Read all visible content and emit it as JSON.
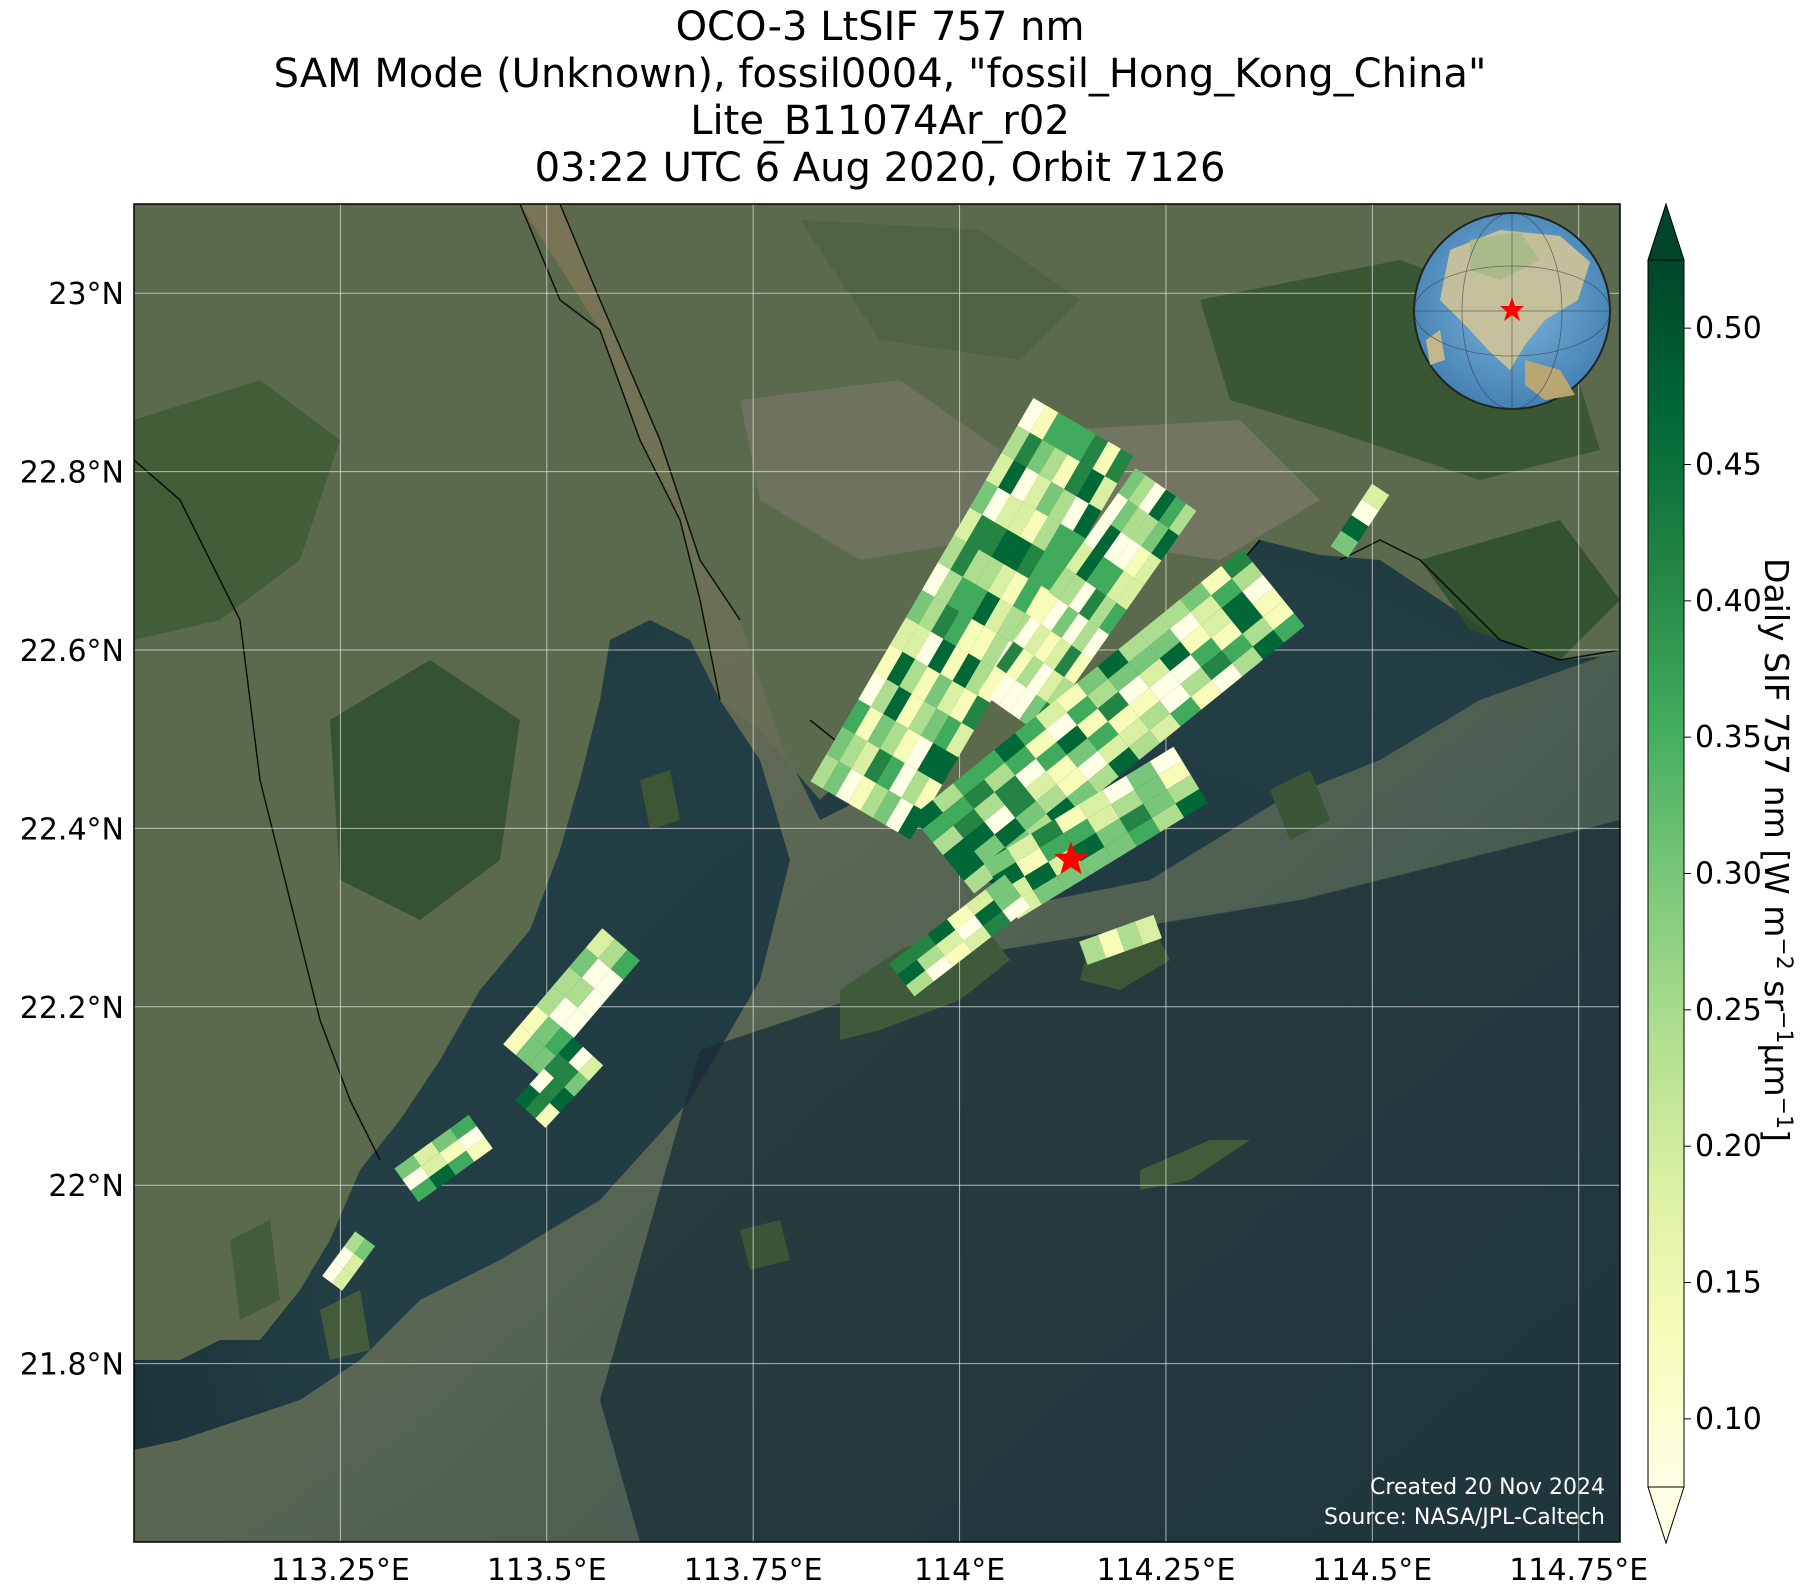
{
  "title": {
    "line1": "OCO-3 LtSIF 757 nm",
    "line2": "SAM Mode (Unknown), fossil0004, \"fossil_Hong_Kong_China\"",
    "line3": "Lite_B11074Ar_r02",
    "line4": "03:22 UTC 6 Aug 2020, Orbit 7126"
  },
  "map": {
    "lon_range": [
      113.0,
      114.8
    ],
    "lat_range": [
      21.6,
      23.1
    ],
    "lon_ticks": [
      "113.25°E",
      "113.5°E",
      "113.75°E",
      "114°E",
      "114.25°E",
      "114.5°E",
      "114.75°E"
    ],
    "lon_tick_values": [
      113.25,
      113.5,
      113.75,
      114.0,
      114.25,
      114.5,
      114.75
    ],
    "lat_ticks": [
      "23°N",
      "22.8°N",
      "22.6°N",
      "22.4°N",
      "22.2°N",
      "22°N",
      "21.8°N"
    ],
    "lat_tick_values": [
      23.0,
      22.8,
      22.6,
      22.4,
      22.2,
      22.0,
      21.8
    ],
    "background": "satellite imagery (Pearl River Delta, Hong Kong)",
    "target_marker": {
      "lon": 114.135,
      "lat": 22.365,
      "symbol": "star-icon",
      "color": "#ff0000"
    },
    "inset_globe": "globe-icon",
    "grid": true
  },
  "colorbar": {
    "label": "Daily SIF 757 nm [W m$^{-2}$ sr$^{-1}$μm$^{-1}$]",
    "label_base": "Daily SIF 757 nm [W m",
    "label_exp1": "−2",
    "label_mid": " sr",
    "label_exp2": "−1",
    "label_mid2": "μm",
    "label_exp3": "−1",
    "label_end": "]",
    "ticks": [
      "0.10",
      "0.15",
      "0.20",
      "0.25",
      "0.30",
      "0.35",
      "0.40",
      "0.45",
      "0.50"
    ],
    "tick_values": [
      0.1,
      0.15,
      0.2,
      0.25,
      0.3,
      0.35,
      0.4,
      0.45,
      0.5
    ],
    "range": [
      0.075,
      0.525
    ],
    "colormap": "YlGn",
    "extend": "both"
  },
  "credits": {
    "created": "Created 20 Nov 2024",
    "source": "Source: NASA/JPL-Caltech"
  }
}
